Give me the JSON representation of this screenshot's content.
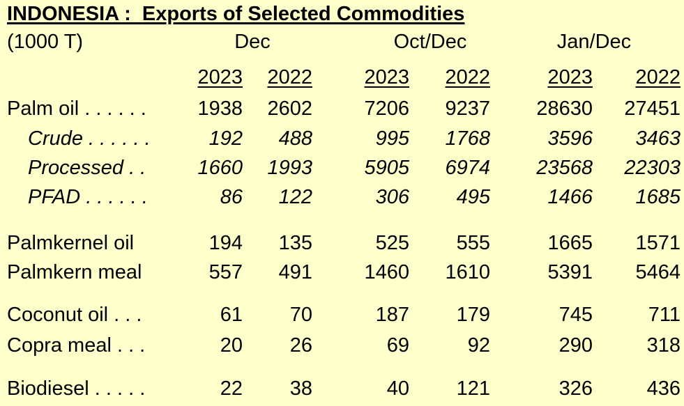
{
  "title": {
    "country": "INDONESIA",
    "separator": " :  ",
    "subject": "Exports of Selected Commodities"
  },
  "unit": "(1000 T)",
  "periods": [
    "Dec",
    "Oct/Dec",
    "Jan/Dec"
  ],
  "years": [
    "2023",
    "2022",
    "2023",
    "2022",
    "2023",
    "2022"
  ],
  "rows": [
    {
      "label": "Palm oil . . . . . .",
      "values": [
        "1938",
        "2602",
        "7206",
        "9237",
        "28630",
        "27451"
      ]
    },
    {
      "label": "Crude . . . . . .",
      "values": [
        "192",
        "488",
        "995",
        "1768",
        "3596",
        "3463"
      ]
    },
    {
      "label": "Processed . .",
      "values": [
        "1660",
        "1993",
        "5905",
        "6974",
        "23568",
        "22303"
      ]
    },
    {
      "label": "PFAD . . . . . .",
      "values": [
        "86",
        "122",
        "306",
        "495",
        "1466",
        "1685"
      ]
    },
    {
      "label": "Palmkernel oil",
      "values": [
        "194",
        "135",
        "525",
        "555",
        "1665",
        "1571"
      ]
    },
    {
      "label": "Palmkern meal",
      "values": [
        "557",
        "491",
        "1460",
        "1610",
        "5391",
        "5464"
      ]
    },
    {
      "label": "Coconut oil . . .",
      "values": [
        "61",
        "70",
        "187",
        "179",
        "745",
        "711"
      ]
    },
    {
      "label": "Copra meal . . .",
      "values": [
        "20",
        "26",
        "69",
        "92",
        "290",
        "318"
      ]
    },
    {
      "label": "Biodiesel . . . . .",
      "values": [
        "22",
        "38",
        "40",
        "121",
        "326",
        "436"
      ]
    }
  ]
}
